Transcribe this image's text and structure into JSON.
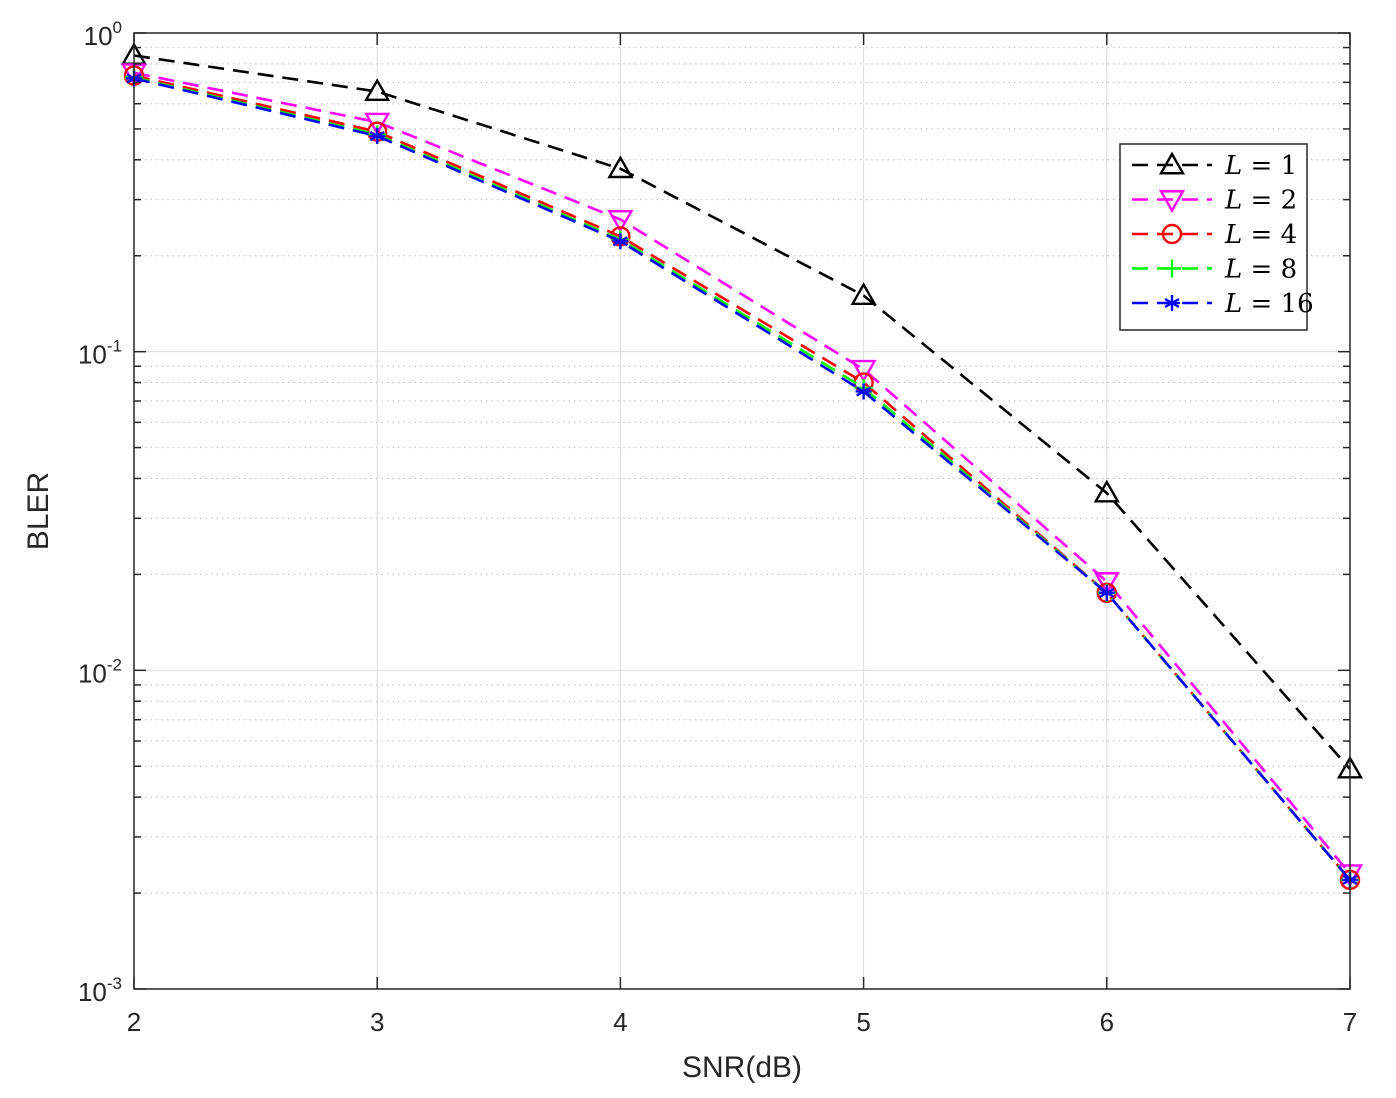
{
  "chart_data": {
    "type": "line",
    "title": "",
    "xlabel": "SNR(dB)",
    "ylabel": "BLER",
    "xlim": [
      2,
      7
    ],
    "ylim": [
      0.001,
      1
    ],
    "yscale": "log",
    "grid": true,
    "legend_position": "top-right",
    "x": [
      2,
      3,
      4,
      5,
      6,
      7
    ],
    "x_ticks": [
      "2",
      "3",
      "4",
      "5",
      "6",
      "7"
    ],
    "y_ticks": [
      {
        "base": "10",
        "exp": "0",
        "value": 1
      },
      {
        "base": "10",
        "exp": "-1",
        "value": 0.1
      },
      {
        "base": "10",
        "exp": "-2",
        "value": 0.01
      },
      {
        "base": "10",
        "exp": "-3",
        "value": 0.001
      }
    ],
    "series": [
      {
        "name": "L = 1",
        "var": "L",
        "eq": "=",
        "num": "1",
        "color": "#000000",
        "marker": "triangle-up",
        "values": [
          0.85,
          0.655,
          0.375,
          0.15,
          0.036,
          0.0049
        ]
      },
      {
        "name": "L = 2",
        "var": "L",
        "eq": "=",
        "num": "2",
        "color": "#ff00ff",
        "marker": "triangle-down",
        "values": [
          0.75,
          0.525,
          0.26,
          0.088,
          0.019,
          0.0023
        ]
      },
      {
        "name": "L = 4",
        "var": "L",
        "eq": "=",
        "num": "4",
        "color": "#ff0000",
        "marker": "circle",
        "values": [
          0.735,
          0.49,
          0.23,
          0.08,
          0.0175,
          0.0022
        ]
      },
      {
        "name": "L = 8",
        "var": "L",
        "eq": "=",
        "num": "8",
        "color": "#00ff00",
        "marker": "plus",
        "values": [
          0.725,
          0.48,
          0.225,
          0.077,
          0.0175,
          0.0022
        ]
      },
      {
        "name": "L = 16",
        "var": "L",
        "eq": "=",
        "num": "16",
        "color": "#0000ff",
        "marker": "asterisk",
        "values": [
          0.72,
          0.475,
          0.222,
          0.075,
          0.0175,
          0.0022
        ]
      }
    ]
  }
}
